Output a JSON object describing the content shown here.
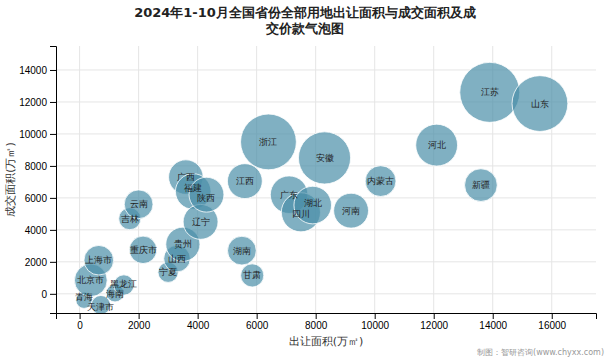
{
  "chart_data": {
    "type": "scatter",
    "title": "2024年1-10月全国省份全部用地出让面积与成交面积及成\n交价款气泡图",
    "x_label": "出让面积(万㎡)",
    "y_label": "成交面积(万㎡)",
    "annotations": [
      "制图：智研咨询(www.chyxx.com)"
    ],
    "xlim": [
      -800,
      17500
    ],
    "ylim": [
      -1200,
      15500
    ],
    "xticks": [
      0,
      2000,
      4000,
      6000,
      8000,
      10000,
      12000,
      14000,
      16000
    ],
    "yticks": [
      0,
      2000,
      4000,
      6000,
      8000,
      10000,
      12000,
      14000
    ],
    "grid": true,
    "color": "#4a8fa8",
    "labels": [
      "青海",
      "北京市",
      "上海市",
      "天津市",
      "海南",
      "黑龙江",
      "吉林",
      "云南",
      "重庆市",
      "宁夏",
      "山西",
      "贵州",
      "广西",
      "福建",
      "辽宁",
      "陕西",
      "湖南",
      "甘肃",
      "江西",
      "浙江",
      "广东",
      "四川",
      "湖北",
      "安徽",
      "河南",
      "内蒙古",
      "河北",
      "新疆",
      "江苏",
      "山东"
    ],
    "x": [
      150,
      380,
      650,
      720,
      1200,
      1500,
      1700,
      2000,
      2150,
      3000,
      3300,
      3500,
      3600,
      3850,
      4100,
      4300,
      5500,
      5850,
      5600,
      6400,
      7100,
      7500,
      7900,
      8300,
      9200,
      10200,
      12100,
      13600,
      13900,
      15600
    ],
    "values": [
      -400,
      850,
      2100,
      -700,
      50,
      550,
      4700,
      5600,
      2750,
      1350,
      2200,
      3100,
      7300,
      6400,
      4500,
      6200,
      2700,
      1150,
      7050,
      9500,
      6200,
      5100,
      5550,
      8500,
      5200,
      7050,
      9300,
      6800,
      12600,
      11900
    ],
    "sizes": [
      55,
      220,
      180,
      75,
      65,
      85,
      100,
      170,
      155,
      85,
      145,
      240,
      245,
      260,
      250,
      250,
      170,
      110,
      250,
      640,
      290,
      315,
      290,
      560,
      250,
      195,
      360,
      220,
      740,
      640
    ]
  }
}
